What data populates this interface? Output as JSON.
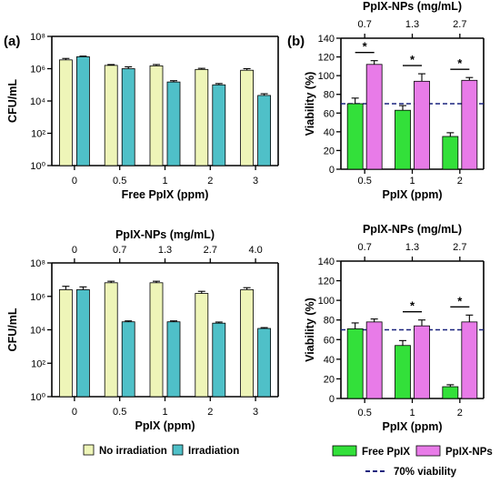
{
  "panel_labels": {
    "a": "(a)",
    "b": "(b)"
  },
  "colors": {
    "no_irradiation": "#eef5b8",
    "irradiation": "#4fc0c8",
    "free_pplx": "#33e03a",
    "pplx_nps": "#e87be8",
    "viability_line": "#1a237e"
  },
  "chart_data": [
    {
      "id": "a1",
      "type": "bar",
      "categories": [
        "0",
        "0.5",
        "1",
        "2",
        "3"
      ],
      "xlabel": "Free PpIX (ppm)",
      "ylabel": "CFU/mL",
      "yscale": "log",
      "ylim": [
        1,
        100000000
      ],
      "yticks": [
        "10⁰",
        "10²",
        "10⁴",
        "10⁶",
        "10⁸"
      ],
      "series": [
        {
          "name": "No irradiation",
          "color": "#eef5b8",
          "values": [
            3500000,
            1600000,
            1500000,
            900000,
            800000
          ],
          "errors": [
            800000,
            200000,
            300000,
            150000,
            200000
          ]
        },
        {
          "name": "Irradiation",
          "color": "#4fc0c8",
          "values": [
            5500000,
            1000000,
            150000,
            100000,
            22000
          ],
          "errors": [
            500000,
            300000,
            30000,
            20000,
            6000
          ]
        }
      ]
    },
    {
      "id": "a2",
      "type": "bar",
      "categories": [
        "0",
        "0.5",
        "1",
        "2",
        "3"
      ],
      "top_axis_label": "PpIX-NPs (mg/mL)",
      "top_categories": [
        "0",
        "0.7",
        "1.3",
        "2.7",
        "4.0"
      ],
      "xlabel": "PpIX (ppm)",
      "ylabel": "CFU/mL",
      "yscale": "log",
      "ylim": [
        1,
        100000000
      ],
      "yticks": [
        "10⁰",
        "10²",
        "10⁴",
        "10⁶",
        "10⁸"
      ],
      "series": [
        {
          "name": "No irradiation",
          "color": "#eef5b8",
          "values": [
            2500000,
            6500000,
            6500000,
            1500000,
            2500000
          ],
          "errors": [
            1500000,
            1500000,
            1500000,
            500000,
            800000
          ],
          "top_errors": [
            1500000,
            1500000,
            1500000,
            500000,
            800000
          ]
        },
        {
          "name": "Irradiation",
          "color": "#4fc0c8",
          "values": [
            2500000,
            30000,
            30000,
            25000,
            12000
          ],
          "errors": [
            1200000,
            4000,
            4000,
            4000,
            1500
          ]
        }
      ]
    },
    {
      "id": "b1",
      "type": "bar",
      "categories": [
        "0.5",
        "1",
        "2"
      ],
      "top_axis_label": "PpIX-NPs (mg/mL)",
      "top_categories": [
        "0.7",
        "1.3",
        "2.7"
      ],
      "xlabel": "PpIX (ppm)",
      "ylabel": "Viability (%)",
      "ylim": [
        0,
        140
      ],
      "yticks": [
        "0",
        "20",
        "40",
        "60",
        "80",
        "100",
        "120",
        "140"
      ],
      "reference_line": 70,
      "significance": [
        "*",
        "*",
        "*"
      ],
      "series": [
        {
          "name": "Free PpIX",
          "color": "#33e03a",
          "values": [
            70,
            63,
            35
          ],
          "errors": [
            6,
            5,
            4
          ]
        },
        {
          "name": "PpIX-NPs",
          "color": "#e87be8",
          "values": [
            112,
            94,
            95
          ],
          "errors": [
            4,
            8,
            3
          ]
        }
      ]
    },
    {
      "id": "b2",
      "type": "bar",
      "categories": [
        "0.5",
        "1",
        "2"
      ],
      "top_axis_label": "PpIX-NPs (mg/mL)",
      "top_categories": [
        "0.7",
        "1.3",
        "2.7"
      ],
      "xlabel": "PpIX (ppm)",
      "ylabel": "Viability (%)",
      "ylim": [
        0,
        140
      ],
      "yticks": [
        "0",
        "20",
        "40",
        "60",
        "80",
        "100",
        "120",
        "140"
      ],
      "reference_line": 70,
      "significance": [
        "",
        "*",
        "*"
      ],
      "series": [
        {
          "name": "Free PpIX",
          "color": "#33e03a",
          "values": [
            71,
            54,
            12
          ],
          "errors": [
            6,
            5,
            2
          ]
        },
        {
          "name": "PpIX-NPs",
          "color": "#e87be8",
          "values": [
            78,
            74,
            78
          ],
          "errors": [
            3,
            6,
            7
          ]
        }
      ]
    }
  ],
  "legends": {
    "a": [
      "No irradiation",
      "Irradiation"
    ],
    "b": [
      "Free PpIX",
      "PpIX-NPs",
      "70% viability"
    ]
  }
}
